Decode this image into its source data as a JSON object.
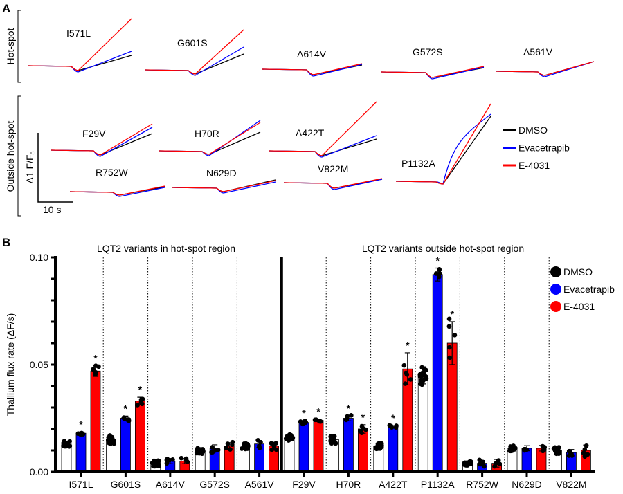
{
  "panel_a": {
    "letter": "A",
    "group_hotspot": "Hot-spot",
    "group_outside": "Outside hot-spot",
    "scale_y_label": "Δ1 F/F",
    "scale_y_sub": "0",
    "scale_x_label": "10 s",
    "traces": [
      "I571L",
      "G601S",
      "A614V",
      "G572S",
      "A561V",
      "F29V",
      "H70R",
      "A422T",
      "R752W",
      "N629D",
      "V822M",
      "P1132A"
    ],
    "legend": [
      {
        "label": "DMSO",
        "color": "#000000"
      },
      {
        "label": "Evacetrapib",
        "color": "#0000ff"
      },
      {
        "label": "E-4031",
        "color": "#ff0000"
      }
    ]
  },
  "chart_data": {
    "type": "bar",
    "panel_letter": "B",
    "ylabel": "Thallium flux rate (ΔF/s)",
    "ylim": [
      0,
      0.1
    ],
    "yticks": [
      "0.00",
      "0.05",
      "0.10"
    ],
    "grid": false,
    "legend_position": "top-right",
    "region_titles": [
      "LQT2 variants in hot-spot region",
      "LQT2 variants outside hot-spot region"
    ],
    "categories": [
      "I571L",
      "G601S",
      "A614V",
      "G572S",
      "A561V",
      "F29V",
      "H70R",
      "A422T",
      "P1132A",
      "R752W",
      "N629D",
      "V822M"
    ],
    "series": [
      {
        "name": "DMSO",
        "color": "#ffffff",
        "marker": "#000000",
        "values": [
          0.013,
          0.015,
          0.004,
          0.01,
          0.012,
          0.016,
          0.015,
          0.012,
          0.045,
          0.004,
          0.011,
          0.01
        ],
        "sd": [
          0.0012,
          0.0018,
          0.0012,
          0.0013,
          0.0012,
          0.0012,
          0.0017,
          0.0013,
          0.004,
          0.0008,
          0.0012,
          0.0013
        ],
        "significant": [
          false,
          false,
          false,
          false,
          false,
          false,
          false,
          false,
          false,
          false,
          false,
          false
        ]
      },
      {
        "name": "Evacetrapib",
        "color": "#0000ff",
        "marker": "#000000",
        "values": [
          0.018,
          0.025,
          0.005,
          0.011,
          0.013,
          0.023,
          0.025,
          0.021,
          0.092,
          0.004,
          0.011,
          0.009
        ],
        "sd": [
          0.0006,
          0.001,
          0.0012,
          0.0016,
          0.0016,
          0.0008,
          0.0012,
          0.0006,
          0.003,
          0.0013,
          0.0012,
          0.0014
        ],
        "significant": [
          true,
          true,
          false,
          false,
          false,
          true,
          true,
          true,
          true,
          false,
          false,
          false
        ]
      },
      {
        "name": "E-4031",
        "color": "#ff0000",
        "marker": "#000000",
        "values": [
          0.047,
          0.033,
          0.005,
          0.012,
          0.012,
          0.024,
          0.02,
          0.048,
          0.06,
          0.004,
          0.011,
          0.01
        ],
        "sd": [
          0.0025,
          0.0018,
          0.0012,
          0.0016,
          0.0018,
          0.0006,
          0.002,
          0.0075,
          0.01,
          0.0018,
          0.0013,
          0.0025
        ],
        "significant": [
          true,
          true,
          false,
          false,
          false,
          true,
          true,
          true,
          true,
          false,
          false,
          false
        ]
      }
    ],
    "significance_marker": "*"
  }
}
